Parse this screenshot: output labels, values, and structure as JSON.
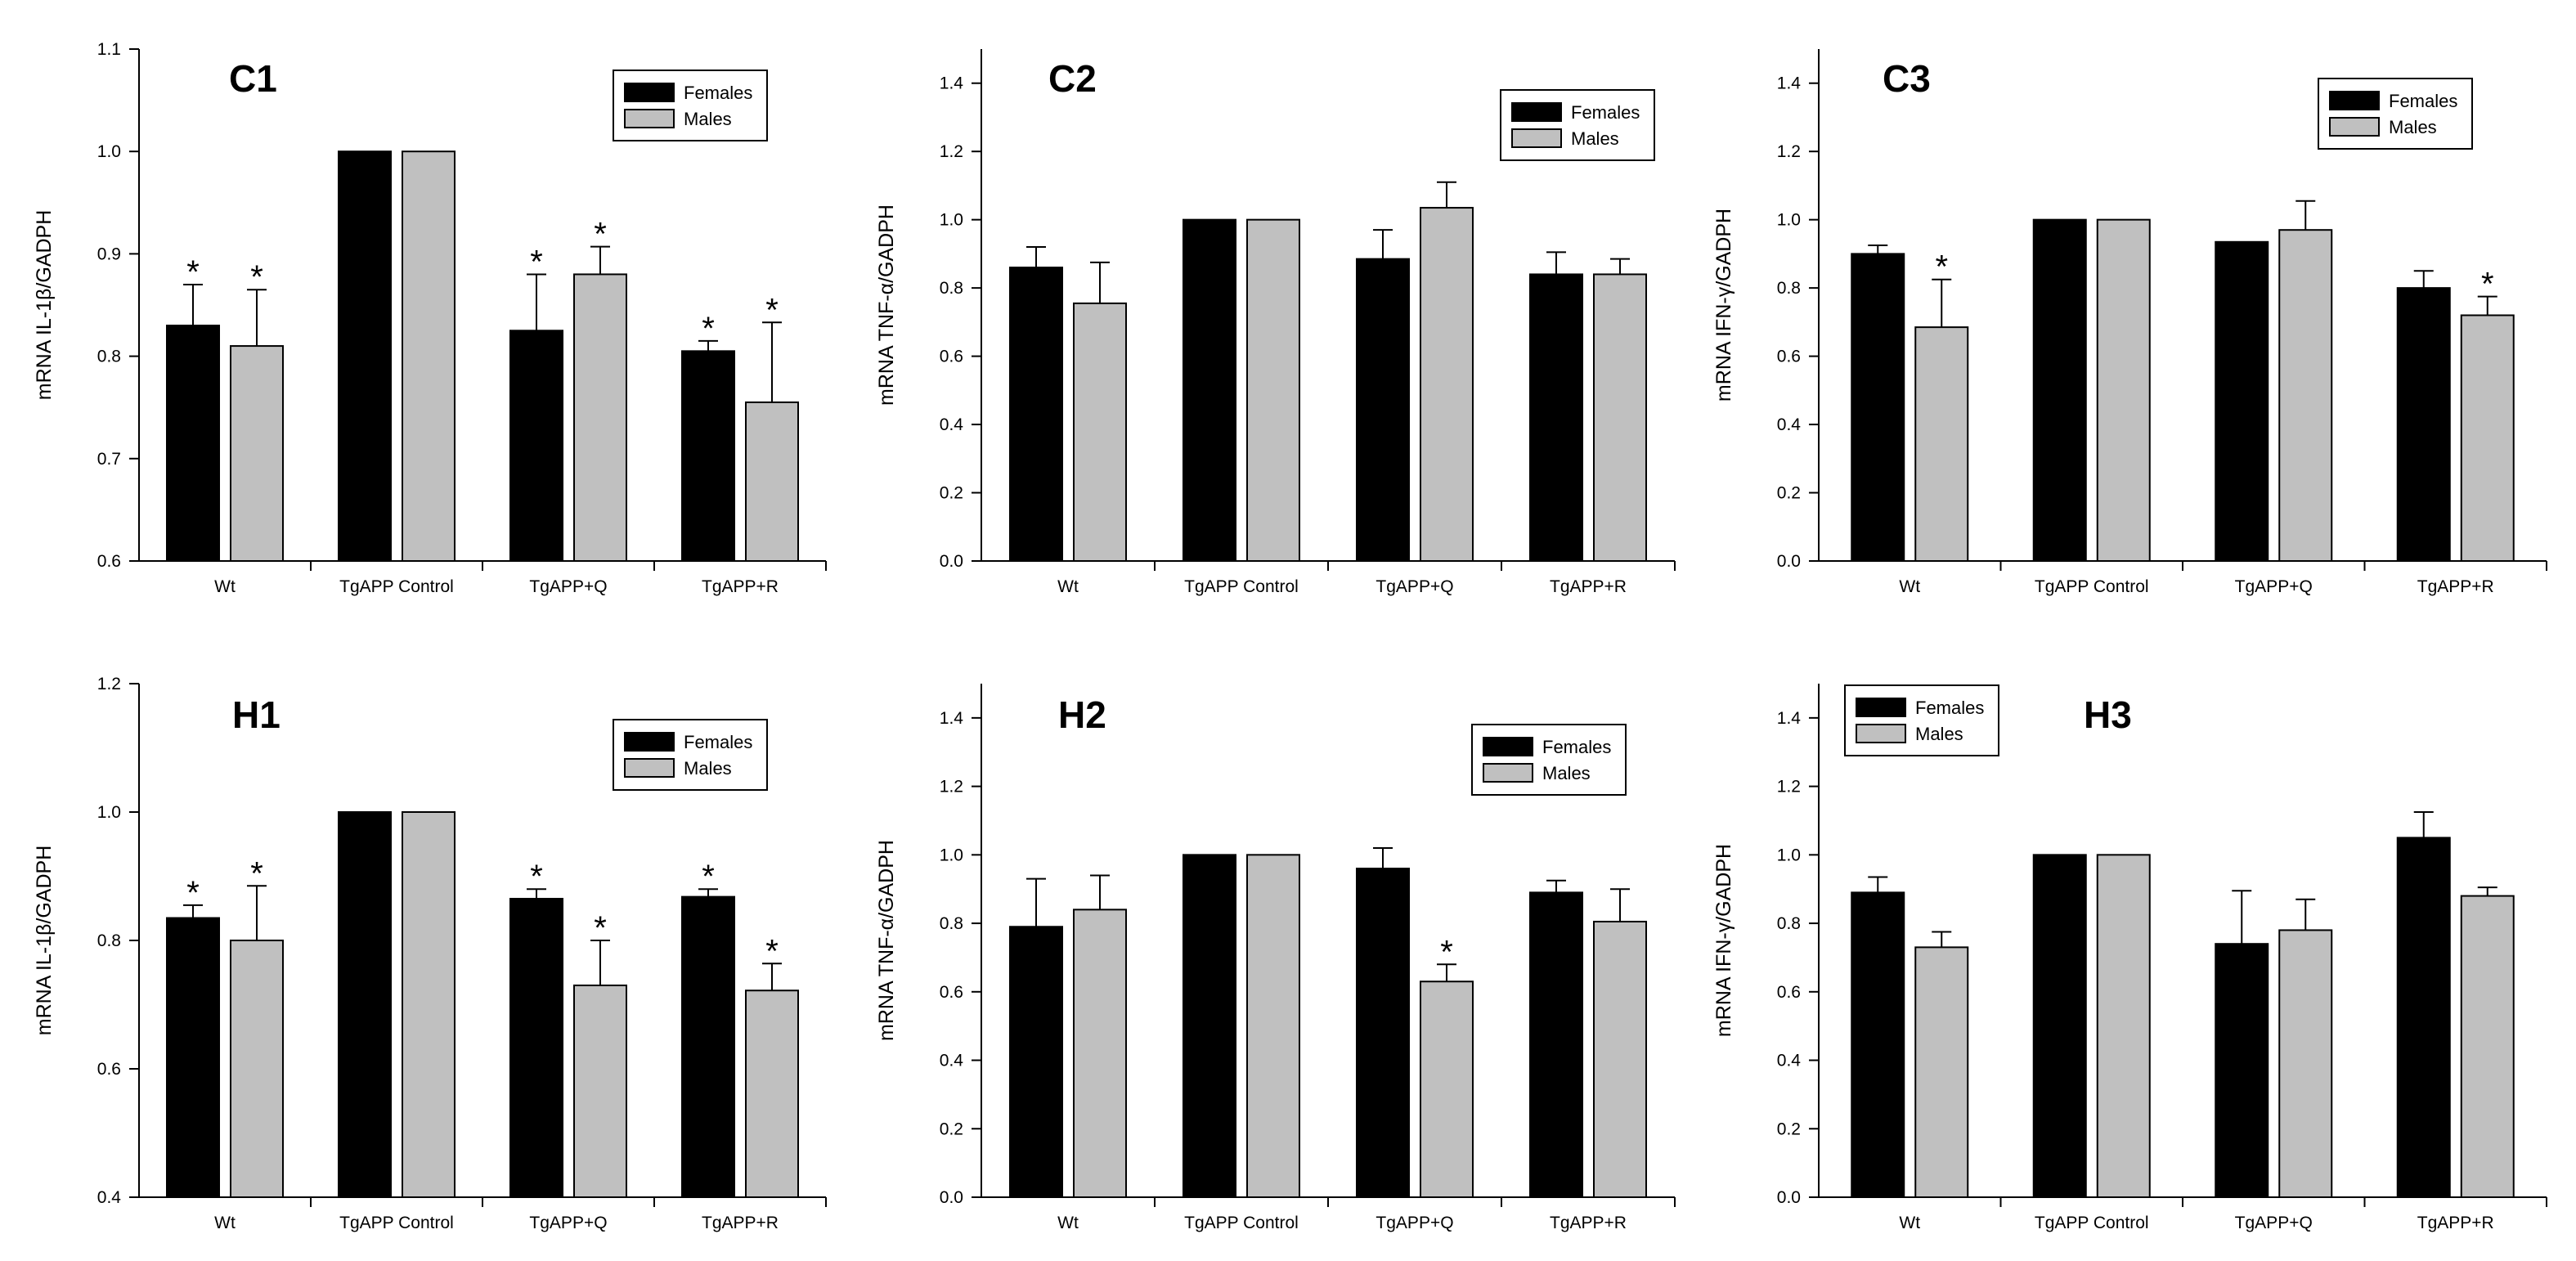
{
  "colors": {
    "females": "#000000",
    "males": "#c0c0c0",
    "axis": "#000000",
    "background": "#ffffff"
  },
  "legend_labels": {
    "females": "Females",
    "males": "Males"
  },
  "chart_data": [
    {
      "type": "bar",
      "title": "C1",
      "xlabel": "",
      "ylabel": "mRNA IL-1β/GADPH",
      "ylim": [
        0.6,
        1.1
      ],
      "ytick_labels": [
        "0.6",
        "0.7",
        "0.8",
        "0.9",
        "1.0",
        "1.1"
      ],
      "categories": [
        "Wt",
        "TgAPP Control",
        "TgAPP+Q",
        "TgAPP+R"
      ],
      "series": [
        {
          "name": "Females",
          "values": [
            0.83,
            1.0,
            0.825,
            0.805
          ],
          "errors": [
            0.04,
            0,
            0.055,
            0.01
          ],
          "significant": [
            true,
            false,
            true,
            true
          ]
        },
        {
          "name": "Males",
          "values": [
            0.81,
            1.0,
            0.88,
            0.755
          ],
          "errors": [
            0.055,
            0,
            0.027,
            0.078
          ],
          "significant": [
            true,
            false,
            true,
            true
          ]
        }
      ],
      "legend_position": "top-right"
    },
    {
      "type": "bar",
      "title": "C2",
      "xlabel": "",
      "ylabel": "mRNA TNF-α/GADPH",
      "ylim": [
        0.0,
        1.5
      ],
      "ytick_labels": [
        "0.0",
        "0.2",
        "0.4",
        "0.6",
        "0.8",
        "1.0",
        "1.2",
        "1.4"
      ],
      "categories": [
        "Wt",
        "TgAPP Control",
        "TgAPP+Q",
        "TgAPP+R"
      ],
      "series": [
        {
          "name": "Females",
          "values": [
            0.86,
            1.0,
            0.885,
            0.84
          ],
          "errors": [
            0.06,
            0,
            0.085,
            0.065
          ],
          "significant": [
            false,
            false,
            false,
            false
          ]
        },
        {
          "name": "Males",
          "values": [
            0.755,
            1.0,
            1.035,
            0.84
          ],
          "errors": [
            0.12,
            0,
            0.075,
            0.045
          ],
          "significant": [
            false,
            false,
            false,
            false
          ]
        }
      ],
      "legend_position": "top-right"
    },
    {
      "type": "bar",
      "title": "C3",
      "xlabel": "",
      "ylabel": "mRNA IFN-γ/GADPH",
      "ylim": [
        0.0,
        1.5
      ],
      "ytick_labels": [
        "0.0",
        "0.2",
        "0.4",
        "0.6",
        "0.8",
        "1.0",
        "1.2",
        "1.4"
      ],
      "categories": [
        "Wt",
        "TgAPP Control",
        "TgAPP+Q",
        "TgAPP+R"
      ],
      "series": [
        {
          "name": "Females",
          "values": [
            0.9,
            1.0,
            0.935,
            0.8
          ],
          "errors": [
            0.025,
            0,
            0,
            0.05
          ],
          "significant": [
            false,
            false,
            false,
            false
          ]
        },
        {
          "name": "Males",
          "values": [
            0.685,
            1.0,
            0.97,
            0.72
          ],
          "errors": [
            0.14,
            0,
            0.085,
            0.055
          ],
          "significant": [
            true,
            false,
            false,
            true
          ]
        }
      ],
      "legend_position": "top-right"
    },
    {
      "type": "bar",
      "title": "H1",
      "xlabel": "",
      "ylabel": "mRNA IL-1β/GADPH",
      "ylim": [
        0.4,
        1.2
      ],
      "ytick_labels": [
        "0.4",
        "0.6",
        "0.8",
        "1.0",
        "1.2"
      ],
      "categories": [
        "Wt",
        "TgAPP Control",
        "TgAPP+Q",
        "TgAPP+R"
      ],
      "series": [
        {
          "name": "Females",
          "values": [
            0.835,
            1.0,
            0.865,
            0.868
          ],
          "errors": [
            0.02,
            0,
            0.015,
            0.012
          ],
          "significant": [
            true,
            false,
            true,
            true
          ]
        },
        {
          "name": "Males",
          "values": [
            0.8,
            1.0,
            0.73,
            0.722
          ],
          "errors": [
            0.085,
            0,
            0.07,
            0.042
          ],
          "significant": [
            true,
            false,
            true,
            true
          ]
        }
      ],
      "legend_position": "top-right"
    },
    {
      "type": "bar",
      "title": "H2",
      "xlabel": "",
      "ylabel": "mRNA TNF-α/GADPH",
      "ylim": [
        0.0,
        1.5
      ],
      "ytick_labels": [
        "0.0",
        "0.2",
        "0.4",
        "0.6",
        "0.8",
        "1.0",
        "1.2",
        "1.4"
      ],
      "categories": [
        "Wt",
        "TgAPP Control",
        "TgAPP+Q",
        "TgAPP+R"
      ],
      "series": [
        {
          "name": "Females",
          "values": [
            0.79,
            1.0,
            0.96,
            0.89
          ],
          "errors": [
            0.14,
            0,
            0.06,
            0.035
          ],
          "significant": [
            false,
            false,
            false,
            false
          ]
        },
        {
          "name": "Males",
          "values": [
            0.84,
            1.0,
            0.63,
            0.805
          ],
          "errors": [
            0.1,
            0,
            0.05,
            0.095
          ],
          "significant": [
            false,
            false,
            true,
            false
          ]
        }
      ],
      "legend_position": "top-right"
    },
    {
      "type": "bar",
      "title": "H3",
      "xlabel": "",
      "ylabel": "mRNA IFN-γ/GADPH",
      "ylim": [
        0.0,
        1.5
      ],
      "ytick_labels": [
        "0.0",
        "0.2",
        "0.4",
        "0.6",
        "0.8",
        "1.0",
        "1.2",
        "1.4"
      ],
      "categories": [
        "Wt",
        "TgAPP Control",
        "TgAPP+Q",
        "TgAPP+R"
      ],
      "series": [
        {
          "name": "Females",
          "values": [
            0.89,
            1.0,
            0.74,
            1.05
          ],
          "errors": [
            0.045,
            0,
            0.155,
            0.075
          ],
          "significant": [
            false,
            false,
            false,
            false
          ]
        },
        {
          "name": "Males",
          "values": [
            0.73,
            1.0,
            0.78,
            0.88
          ],
          "errors": [
            0.045,
            0,
            0.09,
            0.025
          ],
          "significant": [
            false,
            false,
            false,
            false
          ]
        }
      ],
      "legend_position": "top-left"
    }
  ]
}
